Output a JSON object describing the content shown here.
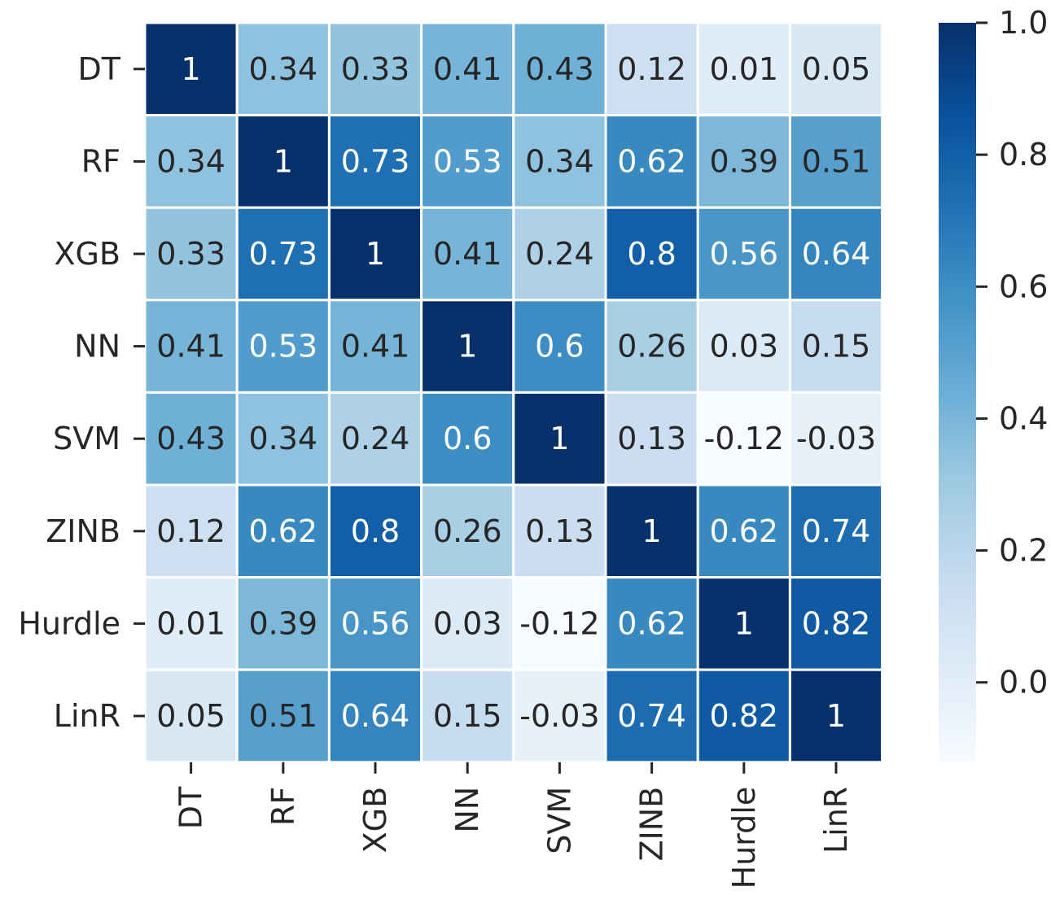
{
  "chart_data": {
    "type": "heatmap",
    "title": "",
    "xlabel": "",
    "ylabel": "",
    "rows": [
      "DT",
      "RF",
      "XGB",
      "NN",
      "SVM",
      "ZINB",
      "Hurdle",
      "LinR"
    ],
    "columns": [
      "DT",
      "RF",
      "XGB",
      "NN",
      "SVM",
      "ZINB",
      "Hurdle",
      "LinR"
    ],
    "values": [
      [
        1,
        0.34,
        0.33,
        0.41,
        0.43,
        0.12,
        0.01,
        0.05
      ],
      [
        0.34,
        1,
        0.73,
        0.53,
        0.34,
        0.62,
        0.39,
        0.51
      ],
      [
        0.33,
        0.73,
        1,
        0.41,
        0.24,
        0.8,
        0.56,
        0.64
      ],
      [
        0.41,
        0.53,
        0.41,
        1,
        0.6,
        0.26,
        0.03,
        0.15
      ],
      [
        0.43,
        0.34,
        0.24,
        0.6,
        1,
        0.13,
        -0.12,
        -0.03
      ],
      [
        0.12,
        0.62,
        0.8,
        0.26,
        0.13,
        1,
        0.62,
        0.74
      ],
      [
        0.01,
        0.39,
        0.56,
        0.03,
        -0.12,
        0.62,
        1,
        0.82
      ],
      [
        0.05,
        0.51,
        0.64,
        0.15,
        -0.03,
        0.74,
        0.82,
        1
      ]
    ],
    "value_labels": [
      [
        "1",
        "0.34",
        "0.33",
        "0.41",
        "0.43",
        "0.12",
        "0.01",
        "0.05"
      ],
      [
        "0.34",
        "1",
        "0.73",
        "0.53",
        "0.34",
        "0.62",
        "0.39",
        "0.51"
      ],
      [
        "0.33",
        "0.73",
        "1",
        "0.41",
        "0.24",
        "0.8",
        "0.56",
        "0.64"
      ],
      [
        "0.41",
        "0.53",
        "0.41",
        "1",
        "0.6",
        "0.26",
        "0.03",
        "0.15"
      ],
      [
        "0.43",
        "0.34",
        "0.24",
        "0.6",
        "1",
        "0.13",
        "-0.12",
        "-0.03"
      ],
      [
        "0.12",
        "0.62",
        "0.8",
        "0.26",
        "0.13",
        "1",
        "0.62",
        "0.74"
      ],
      [
        "0.01",
        "0.39",
        "0.56",
        "0.03",
        "-0.12",
        "0.62",
        "1",
        "0.82"
      ],
      [
        "0.05",
        "0.51",
        "0.64",
        "0.15",
        "-0.03",
        "0.74",
        "0.82",
        "1"
      ]
    ],
    "colorbar": {
      "vmin": -0.12,
      "vmax": 1.0,
      "ticks": [
        0.0,
        0.2,
        0.4,
        0.6,
        0.8,
        1.0
      ],
      "tick_labels": [
        "0.0",
        "0.2",
        "0.4",
        "0.6",
        "0.8",
        "1.0"
      ],
      "colormap": "Blues",
      "colormap_stops": [
        "#f7fbff",
        "#deebf7",
        "#c6dbef",
        "#9ecae1",
        "#6baed6",
        "#4292c6",
        "#2171b5",
        "#08519c",
        "#08306b"
      ],
      "placement": "right"
    },
    "grid_line_color": "#ffffff",
    "dark_text_color": "#262626",
    "light_text_color": "#ffffff"
  }
}
